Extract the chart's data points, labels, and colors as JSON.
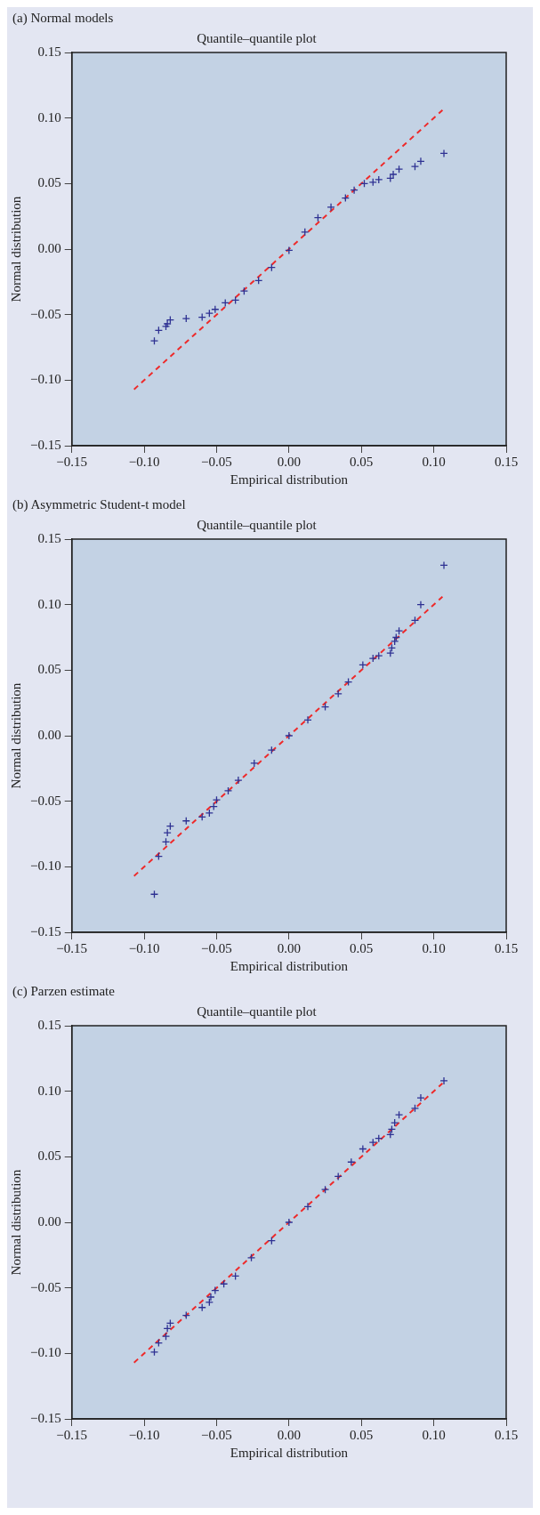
{
  "chart_data": [
    {
      "type": "scatter",
      "subtitle": "(a) Normal models",
      "title": "Quantile–quantile plot",
      "xlabel": "Empirical distribution",
      "ylabel": "Normal distribution",
      "xlim": [
        -0.15,
        0.15
      ],
      "ylim": [
        -0.15,
        0.15
      ],
      "xticks": [
        {
          "value": -0.15,
          "label": "−0.15"
        },
        {
          "value": -0.1,
          "label": "−0.10"
        },
        {
          "value": -0.05,
          "label": "−0.05"
        },
        {
          "value": 0,
          "label": "0.00"
        },
        {
          "value": 0.05,
          "label": "0.05"
        },
        {
          "value": 0.1,
          "label": "0.10"
        },
        {
          "value": 0.15,
          "label": "0.15"
        }
      ],
      "yticks": [
        {
          "value": -0.15,
          "label": "−0.15"
        },
        {
          "value": -0.1,
          "label": "−0.10"
        },
        {
          "value": -0.05,
          "label": "−0.05"
        },
        {
          "value": 0,
          "label": "0.00"
        },
        {
          "value": 0.05,
          "label": "0.05"
        },
        {
          "value": 0.1,
          "label": "0.10"
        },
        {
          "value": 0.15,
          "label": "0.15"
        }
      ],
      "grid": false,
      "legend": false,
      "series": [
        {
          "type": "scatter",
          "color": "#2e3192",
          "marker": "cross",
          "x": [
            -0.093,
            -0.09,
            -0.085,
            -0.084,
            -0.082,
            -0.071,
            -0.06,
            -0.055,
            -0.051,
            -0.044,
            -0.037,
            -0.031,
            -0.021,
            -0.012,
            0,
            0.011,
            0.02,
            0.029,
            0.039,
            0.045,
            0.052,
            0.058,
            0.062,
            0.07,
            0.072,
            0.076,
            0.087,
            0.091,
            0.107
          ],
          "values": [
            -0.07,
            -0.062,
            -0.059,
            -0.057,
            -0.054,
            -0.053,
            -0.052,
            -0.049,
            -0.046,
            -0.041,
            -0.039,
            -0.032,
            -0.024,
            -0.014,
            -0.001,
            0.013,
            0.024,
            0.032,
            0.039,
            0.045,
            0.05,
            0.051,
            0.053,
            0.054,
            0.057,
            0.061,
            0.063,
            0.067,
            0.073
          ]
        },
        {
          "type": "line",
          "color": "#ee2a2a",
          "line_style": "dashed",
          "marker": "none",
          "x": [
            -0.107,
            0.106
          ],
          "values": [
            -0.107,
            0.106
          ]
        }
      ]
    },
    {
      "type": "scatter",
      "subtitle": "(b) Asymmetric Student-t model",
      "title": "Quantile–quantile plot",
      "xlabel": "Empirical distribution",
      "ylabel": "Normal distribution",
      "xlim": [
        -0.15,
        0.15
      ],
      "ylim": [
        -0.15,
        0.15
      ],
      "xticks": [
        {
          "value": -0.15,
          "label": "−0.15"
        },
        {
          "value": -0.1,
          "label": "−0.10"
        },
        {
          "value": -0.05,
          "label": "−0.05"
        },
        {
          "value": 0,
          "label": "0.00"
        },
        {
          "value": 0.05,
          "label": "0.05"
        },
        {
          "value": 0.1,
          "label": "0.10"
        },
        {
          "value": 0.15,
          "label": "0.15"
        }
      ],
      "yticks": [
        {
          "value": -0.15,
          "label": "−0.15"
        },
        {
          "value": -0.1,
          "label": "−0.10"
        },
        {
          "value": -0.05,
          "label": "−0.05"
        },
        {
          "value": 0,
          "label": "0.00"
        },
        {
          "value": 0.05,
          "label": "0.05"
        },
        {
          "value": 0.1,
          "label": "0.10"
        },
        {
          "value": 0.15,
          "label": "0.15"
        }
      ],
      "grid": false,
      "legend": false,
      "series": [
        {
          "type": "scatter",
          "color": "#2e3192",
          "marker": "cross",
          "x": [
            -0.093,
            -0.09,
            -0.085,
            -0.084,
            -0.082,
            -0.071,
            -0.06,
            -0.055,
            -0.052,
            -0.05,
            -0.042,
            -0.035,
            -0.024,
            -0.012,
            0,
            0.013,
            0.025,
            0.034,
            0.041,
            0.051,
            0.058,
            0.062,
            0.07,
            0.071,
            0.073,
            0.074,
            0.076,
            0.087,
            0.091,
            0.107
          ],
          "values": [
            -0.121,
            -0.092,
            -0.081,
            -0.074,
            -0.069,
            -0.065,
            -0.062,
            -0.059,
            -0.054,
            -0.049,
            -0.042,
            -0.034,
            -0.021,
            -0.011,
            0,
            0.012,
            0.022,
            0.032,
            0.041,
            0.054,
            0.059,
            0.061,
            0.063,
            0.067,
            0.072,
            0.075,
            0.08,
            0.088,
            0.1,
            0.13
          ]
        },
        {
          "type": "line",
          "color": "#ee2a2a",
          "line_style": "dashed",
          "marker": "none",
          "x": [
            -0.107,
            0.106
          ],
          "values": [
            -0.107,
            0.106
          ]
        }
      ]
    },
    {
      "type": "scatter",
      "subtitle": "(c) Parzen estimate",
      "title": "Quantile–quantile plot",
      "xlabel": "Empirical distribution",
      "ylabel": "Normal distribution",
      "xlim": [
        -0.15,
        0.15
      ],
      "ylim": [
        -0.15,
        0.15
      ],
      "xticks": [
        {
          "value": -0.15,
          "label": "−0.15"
        },
        {
          "value": -0.1,
          "label": "−0.10"
        },
        {
          "value": -0.05,
          "label": "−0.05"
        },
        {
          "value": 0,
          "label": "0.00"
        },
        {
          "value": 0.05,
          "label": "0.05"
        },
        {
          "value": 0.1,
          "label": "0.10"
        },
        {
          "value": 0.15,
          "label": "0.15"
        }
      ],
      "yticks": [
        {
          "value": -0.15,
          "label": "−0.15"
        },
        {
          "value": -0.1,
          "label": "−0.10"
        },
        {
          "value": -0.05,
          "label": "−0.05"
        },
        {
          "value": 0,
          "label": "0.00"
        },
        {
          "value": 0.05,
          "label": "0.05"
        },
        {
          "value": 0.1,
          "label": "0.10"
        },
        {
          "value": 0.15,
          "label": "0.15"
        }
      ],
      "grid": false,
      "legend": false,
      "series": [
        {
          "type": "scatter",
          "color": "#2e3192",
          "marker": "cross",
          "x": [
            -0.093,
            -0.09,
            -0.085,
            -0.084,
            -0.082,
            -0.071,
            -0.06,
            -0.055,
            -0.054,
            -0.051,
            -0.045,
            -0.037,
            -0.026,
            -0.012,
            0,
            0.013,
            0.025,
            0.034,
            0.043,
            0.051,
            0.058,
            0.062,
            0.07,
            0.071,
            0.073,
            0.076,
            0.087,
            0.091,
            0.107
          ],
          "values": [
            -0.099,
            -0.092,
            -0.087,
            -0.081,
            -0.077,
            -0.071,
            -0.065,
            -0.061,
            -0.057,
            -0.052,
            -0.047,
            -0.041,
            -0.027,
            -0.014,
            0,
            0.012,
            0.025,
            0.035,
            0.046,
            0.056,
            0.061,
            0.064,
            0.067,
            0.071,
            0.076,
            0.082,
            0.087,
            0.095,
            0.108
          ]
        },
        {
          "type": "line",
          "color": "#ee2a2a",
          "line_style": "dashed",
          "marker": "none",
          "x": [
            -0.107,
            0.106
          ],
          "values": [
            -0.107,
            0.106
          ]
        }
      ]
    }
  ]
}
